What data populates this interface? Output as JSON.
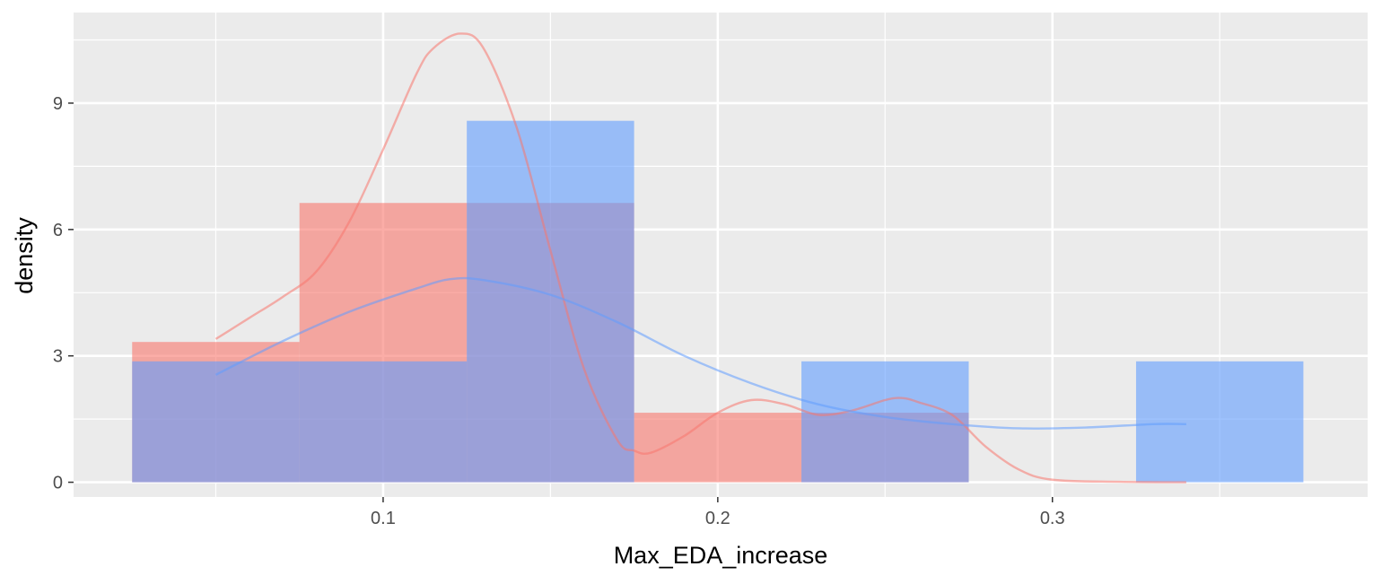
{
  "chart_data": {
    "type": "histogram_density",
    "title": "",
    "xlabel": "Max_EDA_increase",
    "ylabel": "density",
    "xlim": [
      0.0075,
      0.3942
    ],
    "ylim": [
      -0.35,
      11.15
    ],
    "x_ticks": [
      0.1,
      0.2,
      0.3
    ],
    "x_tick_labels": [
      "0.1",
      "0.2",
      "0.3"
    ],
    "x_minor_ticks": [
      0.05,
      0.15,
      0.25,
      0.35
    ],
    "y_ticks": [
      0,
      3,
      6,
      9
    ],
    "y_tick_labels": [
      "0",
      "3",
      "6",
      "9"
    ],
    "y_minor_ticks": [
      1.5,
      4.5,
      7.5,
      10.5
    ],
    "grid": true,
    "legend": "none",
    "colors": {
      "panel_background": "#ebebeb",
      "grid": "#ffffff",
      "red": "#f8766d",
      "blue": "#619cff"
    },
    "series": [
      {
        "color": "#f8766d",
        "fill_opacity": 0.6,
        "bins": [
          {
            "x0": 0.025,
            "x1": 0.075,
            "value": 3.33
          },
          {
            "x0": 0.075,
            "x1": 0.125,
            "value": 6.63
          },
          {
            "x0": 0.125,
            "x1": 0.175,
            "value": 6.63
          },
          {
            "x0": 0.175,
            "x1": 0.225,
            "value": 1.65
          },
          {
            "x0": 0.225,
            "x1": 0.275,
            "value": 1.65
          }
        ],
        "density": [
          [
            0.05,
            3.4
          ],
          [
            0.06,
            3.9
          ],
          [
            0.07,
            4.4
          ],
          [
            0.08,
            5.0
          ],
          [
            0.09,
            6.2
          ],
          [
            0.1,
            7.9
          ],
          [
            0.11,
            9.7
          ],
          [
            0.115,
            10.3
          ],
          [
            0.123,
            10.65
          ],
          [
            0.13,
            10.3
          ],
          [
            0.14,
            8.4
          ],
          [
            0.15,
            5.5
          ],
          [
            0.16,
            2.7
          ],
          [
            0.17,
            1.0
          ],
          [
            0.175,
            0.75
          ],
          [
            0.18,
            0.7
          ],
          [
            0.19,
            1.1
          ],
          [
            0.2,
            1.65
          ],
          [
            0.21,
            1.95
          ],
          [
            0.22,
            1.85
          ],
          [
            0.23,
            1.6
          ],
          [
            0.24,
            1.7
          ],
          [
            0.25,
            1.95
          ],
          [
            0.255,
            2.0
          ],
          [
            0.26,
            1.9
          ],
          [
            0.27,
            1.6
          ],
          [
            0.28,
            0.85
          ],
          [
            0.29,
            0.3
          ],
          [
            0.3,
            0.06
          ],
          [
            0.32,
            0.01
          ],
          [
            0.34,
            0.0
          ]
        ]
      },
      {
        "color": "#619cff",
        "fill_opacity": 0.6,
        "bins": [
          {
            "x0": 0.025,
            "x1": 0.075,
            "value": 2.87
          },
          {
            "x0": 0.075,
            "x1": 0.125,
            "value": 2.87
          },
          {
            "x0": 0.125,
            "x1": 0.175,
            "value": 8.58
          },
          {
            "x0": 0.175,
            "x1": 0.225,
            "value": 0
          },
          {
            "x0": 0.225,
            "x1": 0.275,
            "value": 2.87
          },
          {
            "x0": 0.275,
            "x1": 0.325,
            "value": 0
          },
          {
            "x0": 0.325,
            "x1": 0.375,
            "value": 2.87
          }
        ],
        "density": [
          [
            0.05,
            2.55
          ],
          [
            0.07,
            3.35
          ],
          [
            0.09,
            4.05
          ],
          [
            0.11,
            4.6
          ],
          [
            0.12,
            4.82
          ],
          [
            0.13,
            4.8
          ],
          [
            0.15,
            4.45
          ],
          [
            0.17,
            3.8
          ],
          [
            0.19,
            3.0
          ],
          [
            0.21,
            2.35
          ],
          [
            0.23,
            1.85
          ],
          [
            0.25,
            1.55
          ],
          [
            0.27,
            1.38
          ],
          [
            0.29,
            1.28
          ],
          [
            0.31,
            1.3
          ],
          [
            0.33,
            1.38
          ],
          [
            0.34,
            1.38
          ]
        ]
      }
    ]
  }
}
